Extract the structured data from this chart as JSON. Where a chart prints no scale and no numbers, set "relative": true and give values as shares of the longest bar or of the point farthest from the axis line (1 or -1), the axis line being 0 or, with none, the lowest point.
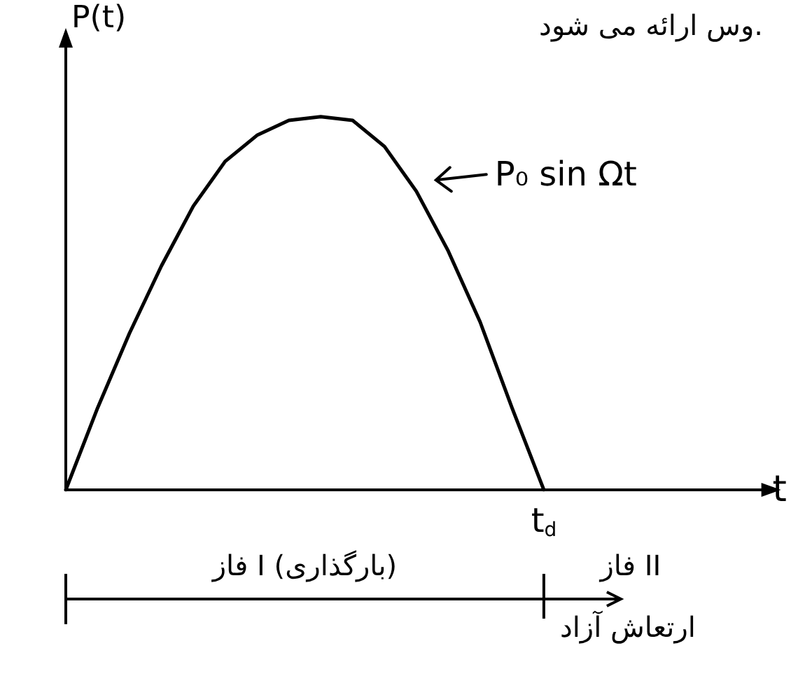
{
  "chart_data": {
    "type": "line",
    "relative": true,
    "ylabel": "P(t)",
    "xlabel": "t",
    "categories": [
      null,
      null,
      null,
      null,
      null,
      null,
      null,
      null,
      null,
      null,
      null,
      null,
      null,
      null,
      null,
      null,
      null,
      null,
      null,
      null,
      null,
      null,
      null
    ],
    "series": [
      {
        "color": "#000000",
        "values": [
          0,
          0.22,
          0.42,
          0.6,
          0.76,
          0.88,
          0.95,
          0.99,
          1,
          0.99,
          0.92,
          0.8,
          0.64,
          0.45,
          0.22,
          0,
          null,
          null,
          null,
          null,
          null,
          null,
          null
        ]
      }
    ],
    "marker": "none",
    "line_style": "solid",
    "grid": false,
    "annotations": [
      "P₀ sin Ωt",
      "وس ارائه می شود.",
      "فاز I (بارگذاری)",
      "فاز II",
      "ارتعاش آزاد",
      "t$_{d}$"
    ]
  }
}
